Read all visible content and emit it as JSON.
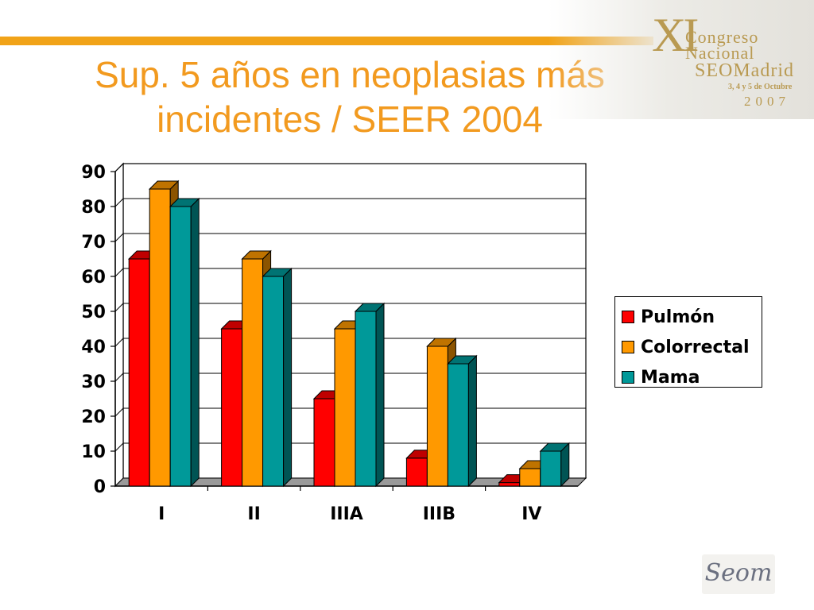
{
  "slide": {
    "title_line1": "Sup. 5 años en neoplasias más",
    "title_line2": "incidentes / SEER 2004"
  },
  "congress_logo": {
    "roman": "XI",
    "line1": "Congreso",
    "line2": "Nacional",
    "line3": "SEOMadrid",
    "line4": "3, 4 y 5 de Octubre",
    "line5": "2007"
  },
  "seom_logo": {
    "text": "Seom"
  },
  "colors": {
    "title": "#f29a1f",
    "rule": "#f1a318",
    "pulmon": "#ff0000",
    "colorrectal": "#ff9900",
    "mama": "#009999"
  },
  "chart_data": {
    "type": "bar",
    "title": "Sup. 5 años en neoplasias más incidentes / SEER 2004",
    "xlabel": "",
    "ylabel": "",
    "categories": [
      "I",
      "II",
      "IIIA",
      "IIIB",
      "IV"
    ],
    "series": [
      {
        "name": "Pulmón",
        "values": [
          65,
          45,
          25,
          8,
          1
        ],
        "color": "#ff0000"
      },
      {
        "name": "Colorrectal",
        "values": [
          85,
          65,
          45,
          40,
          5
        ],
        "color": "#ff9900"
      },
      {
        "name": "Mama",
        "values": [
          80,
          60,
          50,
          35,
          10
        ],
        "color": "#009999"
      }
    ],
    "ylim": [
      0,
      90
    ],
    "yticks": [
      0,
      10,
      20,
      30,
      40,
      50,
      60,
      70,
      80,
      90
    ],
    "grid": true,
    "legend": "right"
  }
}
